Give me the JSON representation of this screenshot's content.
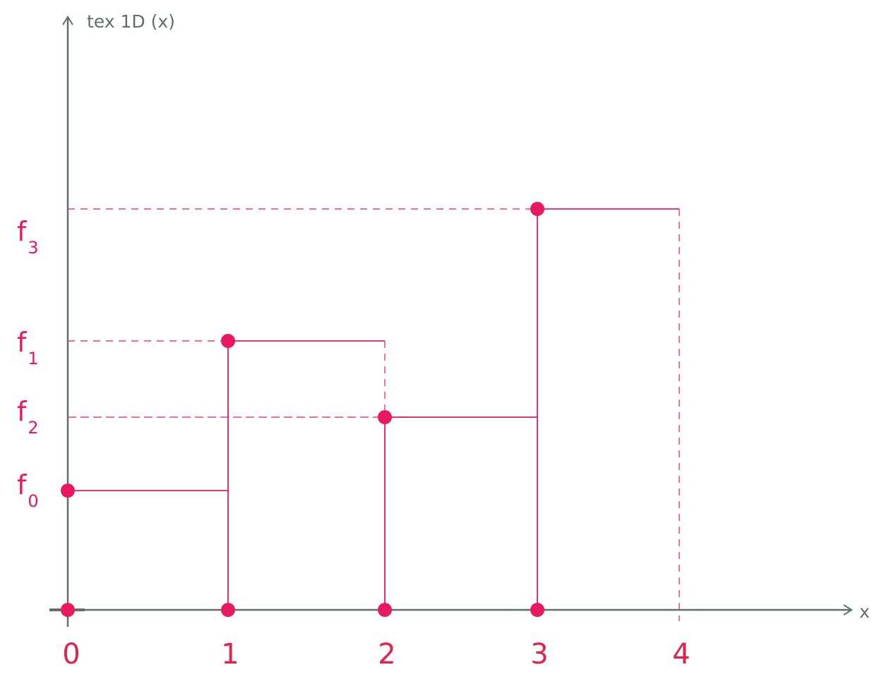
{
  "axes": {
    "y_label": "tex 1D (x)",
    "x_label": "x",
    "axis_color": "#5f6f6a"
  },
  "colors": {
    "signal": "#e8195f",
    "tick_label": "#e0234a",
    "value_label": "#e8195f",
    "background": "#ffffff"
  },
  "x_ticks": [
    "0",
    "1",
    "2",
    "3",
    "4"
  ],
  "samples": [
    {
      "x": 0,
      "name": "f",
      "index": "0",
      "level": 0
    },
    {
      "x": 1,
      "name": "f",
      "index": "1",
      "level": 2
    },
    {
      "x": 2,
      "name": "f",
      "index": "2",
      "level": 1
    },
    {
      "x": 3,
      "name": "f",
      "index": "3",
      "level": 3
    }
  ],
  "domain_end": 4
}
